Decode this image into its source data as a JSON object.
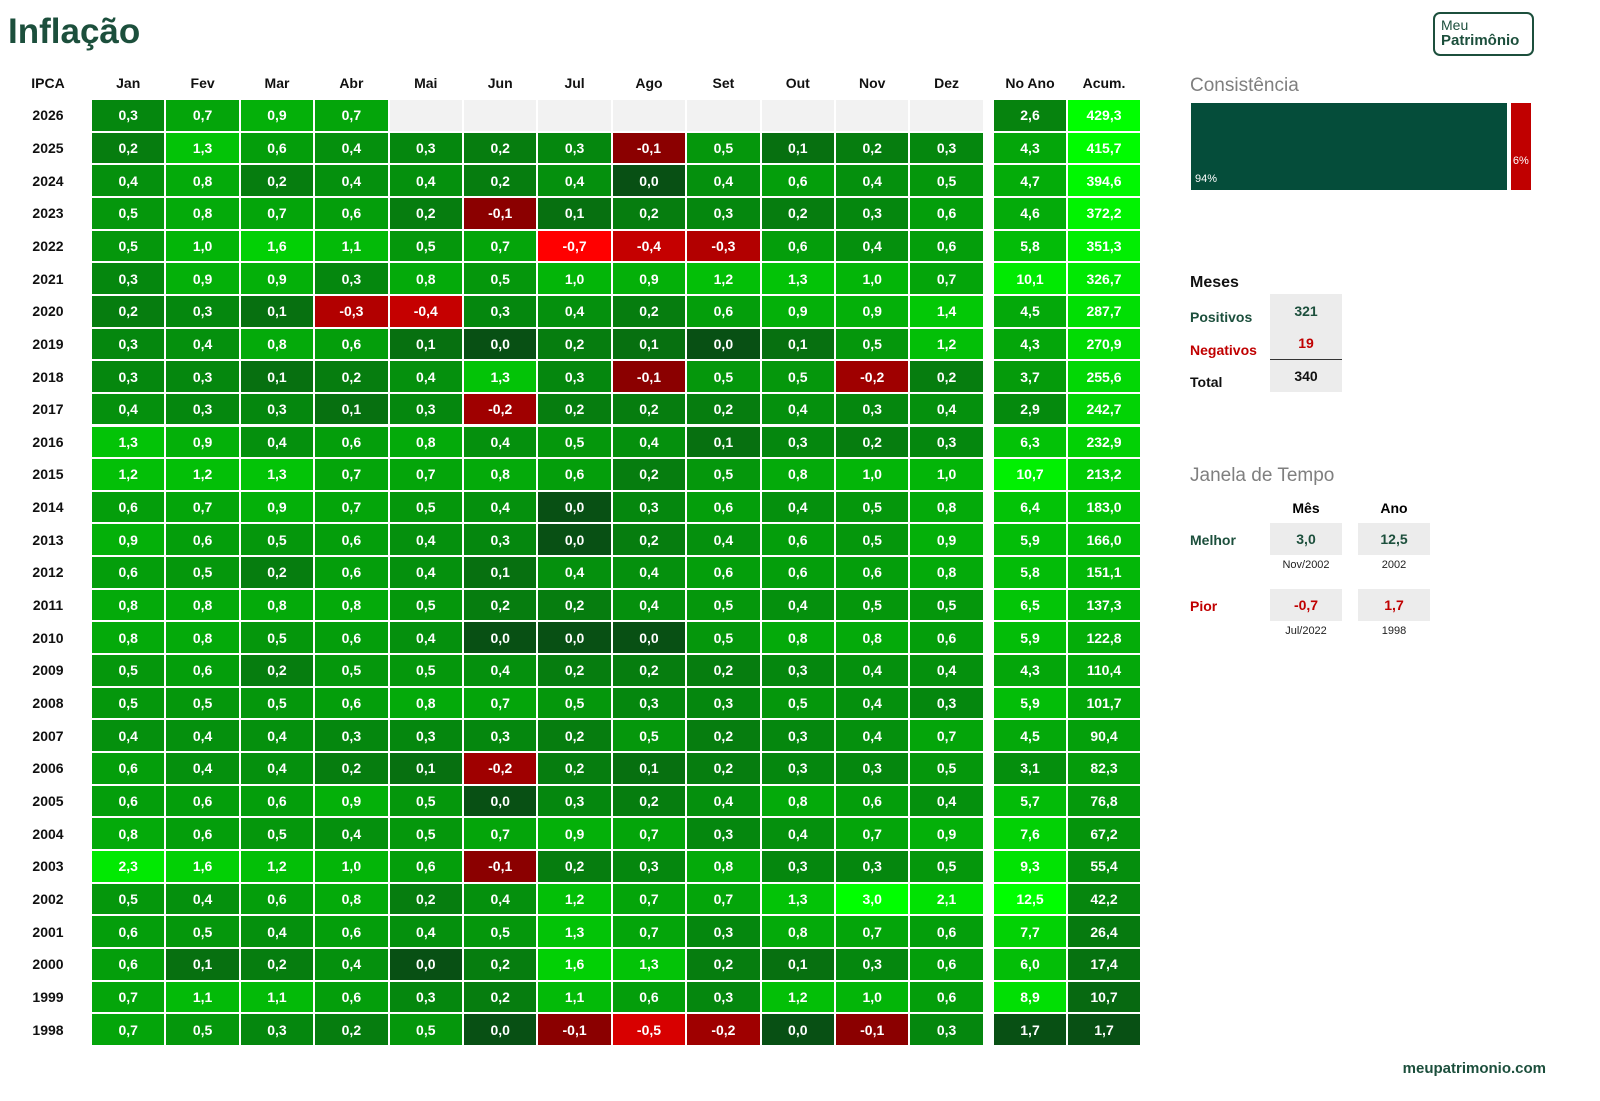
{
  "header": {
    "title": "Inflação",
    "logo": [
      "Meu",
      "Patrimônio"
    ]
  },
  "table": {
    "columns": [
      "IPCA",
      "Jan",
      "Fev",
      "Mar",
      "Abr",
      "Mai",
      "Jun",
      "Jul",
      "Ago",
      "Set",
      "Out",
      "Nov",
      "Dez",
      "No Ano",
      "Acum."
    ],
    "rows": [
      [
        "2026",
        "0,3",
        "0,7",
        "0,9",
        "0,7",
        null,
        null,
        null,
        null,
        null,
        null,
        null,
        null,
        "2,6",
        "429,3"
      ],
      [
        "2025",
        "0,2",
        "1,3",
        "0,6",
        "0,4",
        "0,3",
        "0,2",
        "0,3",
        "-0,1",
        "0,5",
        "0,1",
        "0,2",
        "0,3",
        "4,3",
        "415,7"
      ],
      [
        "2024",
        "0,4",
        "0,8",
        "0,2",
        "0,4",
        "0,4",
        "0,2",
        "0,4",
        "0,0",
        "0,4",
        "0,6",
        "0,4",
        "0,5",
        "4,7",
        "394,6"
      ],
      [
        "2023",
        "0,5",
        "0,8",
        "0,7",
        "0,6",
        "0,2",
        "-0,1",
        "0,1",
        "0,2",
        "0,3",
        "0,2",
        "0,3",
        "0,6",
        "4,6",
        "372,2"
      ],
      [
        "2022",
        "0,5",
        "1,0",
        "1,6",
        "1,1",
        "0,5",
        "0,7",
        "-0,7",
        "-0,4",
        "-0,3",
        "0,6",
        "0,4",
        "0,6",
        "5,8",
        "351,3"
      ],
      [
        "2021",
        "0,3",
        "0,9",
        "0,9",
        "0,3",
        "0,8",
        "0,5",
        "1,0",
        "0,9",
        "1,2",
        "1,3",
        "1,0",
        "0,7",
        "10,1",
        "326,7"
      ],
      [
        "2020",
        "0,2",
        "0,3",
        "0,1",
        "-0,3",
        "-0,4",
        "0,3",
        "0,4",
        "0,2",
        "0,6",
        "0,9",
        "0,9",
        "1,4",
        "4,5",
        "287,7"
      ],
      [
        "2019",
        "0,3",
        "0,4",
        "0,8",
        "0,6",
        "0,1",
        "0,0",
        "0,2",
        "0,1",
        "0,0",
        "0,1",
        "0,5",
        "1,2",
        "4,3",
        "270,9"
      ],
      [
        "2018",
        "0,3",
        "0,3",
        "0,1",
        "0,2",
        "0,4",
        "1,3",
        "0,3",
        "-0,1",
        "0,5",
        "0,5",
        "-0,2",
        "0,2",
        "3,7",
        "255,6"
      ],
      [
        "2017",
        "0,4",
        "0,3",
        "0,3",
        "0,1",
        "0,3",
        "-0,2",
        "0,2",
        "0,2",
        "0,2",
        "0,4",
        "0,3",
        "0,4",
        "2,9",
        "242,7"
      ],
      [
        "2016",
        "1,3",
        "0,9",
        "0,4",
        "0,6",
        "0,8",
        "0,4",
        "0,5",
        "0,4",
        "0,1",
        "0,3",
        "0,2",
        "0,3",
        "6,3",
        "232,9"
      ],
      [
        "2015",
        "1,2",
        "1,2",
        "1,3",
        "0,7",
        "0,7",
        "0,8",
        "0,6",
        "0,2",
        "0,5",
        "0,8",
        "1,0",
        "1,0",
        "10,7",
        "213,2"
      ],
      [
        "2014",
        "0,6",
        "0,7",
        "0,9",
        "0,7",
        "0,5",
        "0,4",
        "0,0",
        "0,3",
        "0,6",
        "0,4",
        "0,5",
        "0,8",
        "6,4",
        "183,0"
      ],
      [
        "2013",
        "0,9",
        "0,6",
        "0,5",
        "0,6",
        "0,4",
        "0,3",
        "0,0",
        "0,2",
        "0,4",
        "0,6",
        "0,5",
        "0,9",
        "5,9",
        "166,0"
      ],
      [
        "2012",
        "0,6",
        "0,5",
        "0,2",
        "0,6",
        "0,4",
        "0,1",
        "0,4",
        "0,4",
        "0,6",
        "0,6",
        "0,6",
        "0,8",
        "5,8",
        "151,1"
      ],
      [
        "2011",
        "0,8",
        "0,8",
        "0,8",
        "0,8",
        "0,5",
        "0,2",
        "0,2",
        "0,4",
        "0,5",
        "0,4",
        "0,5",
        "0,5",
        "6,5",
        "137,3"
      ],
      [
        "2010",
        "0,8",
        "0,8",
        "0,5",
        "0,6",
        "0,4",
        "0,0",
        "0,0",
        "0,0",
        "0,5",
        "0,8",
        "0,8",
        "0,6",
        "5,9",
        "122,8"
      ],
      [
        "2009",
        "0,5",
        "0,6",
        "0,2",
        "0,5",
        "0,5",
        "0,4",
        "0,2",
        "0,2",
        "0,2",
        "0,3",
        "0,4",
        "0,4",
        "4,3",
        "110,4"
      ],
      [
        "2008",
        "0,5",
        "0,5",
        "0,5",
        "0,6",
        "0,8",
        "0,7",
        "0,5",
        "0,3",
        "0,3",
        "0,5",
        "0,4",
        "0,3",
        "5,9",
        "101,7"
      ],
      [
        "2007",
        "0,4",
        "0,4",
        "0,4",
        "0,3",
        "0,3",
        "0,3",
        "0,2",
        "0,5",
        "0,2",
        "0,3",
        "0,4",
        "0,7",
        "4,5",
        "90,4"
      ],
      [
        "2006",
        "0,6",
        "0,4",
        "0,4",
        "0,2",
        "0,1",
        "-0,2",
        "0,2",
        "0,1",
        "0,2",
        "0,3",
        "0,3",
        "0,5",
        "3,1",
        "82,3"
      ],
      [
        "2005",
        "0,6",
        "0,6",
        "0,6",
        "0,9",
        "0,5",
        "0,0",
        "0,3",
        "0,2",
        "0,4",
        "0,8",
        "0,6",
        "0,4",
        "5,7",
        "76,8"
      ],
      [
        "2004",
        "0,8",
        "0,6",
        "0,5",
        "0,4",
        "0,5",
        "0,7",
        "0,9",
        "0,7",
        "0,3",
        "0,4",
        "0,7",
        "0,9",
        "7,6",
        "67,2"
      ],
      [
        "2003",
        "2,3",
        "1,6",
        "1,2",
        "1,0",
        "0,6",
        "-0,1",
        "0,2",
        "0,3",
        "0,8",
        "0,3",
        "0,3",
        "0,5",
        "9,3",
        "55,4"
      ],
      [
        "2002",
        "0,5",
        "0,4",
        "0,6",
        "0,8",
        "0,2",
        "0,4",
        "1,2",
        "0,7",
        "0,7",
        "1,3",
        "3,0",
        "2,1",
        "12,5",
        "42,2"
      ],
      [
        "2001",
        "0,6",
        "0,5",
        "0,4",
        "0,6",
        "0,4",
        "0,5",
        "1,3",
        "0,7",
        "0,3",
        "0,8",
        "0,7",
        "0,6",
        "7,7",
        "26,4"
      ],
      [
        "2000",
        "0,6",
        "0,1",
        "0,2",
        "0,4",
        "0,0",
        "0,2",
        "1,6",
        "1,3",
        "0,2",
        "0,1",
        "0,3",
        "0,6",
        "6,0",
        "17,4"
      ],
      [
        "1999",
        "0,7",
        "1,1",
        "1,1",
        "0,6",
        "0,3",
        "0,2",
        "1,1",
        "0,6",
        "0,3",
        "1,2",
        "1,0",
        "0,6",
        "8,9",
        "10,7"
      ],
      [
        "1998",
        "0,7",
        "0,5",
        "0,3",
        "0,2",
        "0,5",
        "0,0",
        "-0,1",
        "-0,5",
        "-0,2",
        "0,0",
        "-0,1",
        "0,3",
        "1,7",
        "1,7"
      ]
    ]
  },
  "consistency": {
    "title": "Consistência",
    "positive": {
      "value": 94,
      "label": "94%"
    },
    "negative": {
      "value": 6,
      "label": "6%"
    }
  },
  "months": {
    "title": "Meses",
    "rows": [
      {
        "label": "Positivos",
        "value": "321"
      },
      {
        "label": "Negativos",
        "value": "19"
      },
      {
        "label": "Total",
        "value": "340"
      }
    ]
  },
  "window": {
    "title": "Janela de Tempo",
    "columns": [
      "Mês",
      "Ano"
    ],
    "rows": [
      {
        "label": "Melhor",
        "values": [
          "3,0",
          "12,5"
        ],
        "notes": [
          "Nov/2002",
          "2002"
        ]
      },
      {
        "label": "Pior",
        "values": [
          "-0,7",
          "1,7"
        ],
        "notes": [
          "Jul/2022",
          "1998"
        ]
      }
    ]
  },
  "footer": "meupatrimonio.com"
}
